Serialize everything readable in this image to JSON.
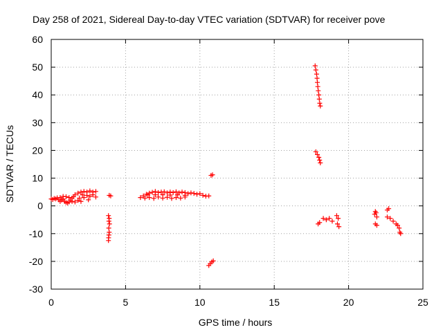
{
  "chart_data": {
    "type": "scatter",
    "title": "Day 258 of 2021, Sidereal Day-to-day VTEC variation (SDTVAR) for receiver pove",
    "xlabel": "GPS time / hours",
    "ylabel": "SDTVAR / TECUs",
    "xlim": [
      0,
      25
    ],
    "ylim": [
      -30,
      60
    ],
    "xticks": [
      0,
      5,
      10,
      15,
      20,
      25
    ],
    "yticks": [
      -30,
      -20,
      -10,
      0,
      10,
      20,
      30,
      40,
      50,
      60
    ],
    "xtick_labels": [
      "0",
      "5",
      "10",
      "15",
      "20",
      "25"
    ],
    "ytick_labels": [
      "-30",
      "-20",
      "-10",
      "0",
      "10",
      "20",
      "30",
      "40",
      "50",
      "60"
    ],
    "grid": true,
    "marker": "plus",
    "color": "#ff0000",
    "series": [
      {
        "name": "SDTVAR",
        "points": [
          [
            0.0,
            2.5
          ],
          [
            0.1,
            2.3
          ],
          [
            0.2,
            2.7
          ],
          [
            0.3,
            2.5
          ],
          [
            0.4,
            2.9
          ],
          [
            0.5,
            2.2
          ],
          [
            0.6,
            3.0
          ],
          [
            0.7,
            2.1
          ],
          [
            0.8,
            2.5
          ],
          [
            0.9,
            1.6
          ],
          [
            1.0,
            1.2
          ],
          [
            1.1,
            1.0
          ],
          [
            1.2,
            1.4
          ],
          [
            1.3,
            2.1
          ],
          [
            1.4,
            2.8
          ],
          [
            1.5,
            3.3
          ],
          [
            0.6,
            1.6
          ],
          [
            0.8,
            3.4
          ],
          [
            1.0,
            3.3
          ],
          [
            1.2,
            3.0
          ],
          [
            1.4,
            1.6
          ],
          [
            1.6,
            1.4
          ],
          [
            1.8,
            2.0
          ],
          [
            2.0,
            1.6
          ],
          [
            1.6,
            4.0
          ],
          [
            1.8,
            4.6
          ],
          [
            2.0,
            5.0
          ],
          [
            2.2,
            5.2
          ],
          [
            2.4,
            5.0
          ],
          [
            2.6,
            5.4
          ],
          [
            2.8,
            5.0
          ],
          [
            3.0,
            5.2
          ],
          [
            2.2,
            3.0
          ],
          [
            2.4,
            3.8
          ],
          [
            2.6,
            3.4
          ],
          [
            2.8,
            4.0
          ],
          [
            3.0,
            3.2
          ],
          [
            1.9,
            2.8
          ],
          [
            2.1,
            4.0
          ],
          [
            2.5,
            2.2
          ],
          [
            3.9,
            3.8
          ],
          [
            4.0,
            3.6
          ],
          [
            3.85,
            -3.5
          ],
          [
            3.9,
            -4.5
          ],
          [
            3.88,
            -5.5
          ],
          [
            3.92,
            -6.5
          ],
          [
            3.87,
            -8.0
          ],
          [
            3.9,
            -9.5
          ],
          [
            3.88,
            -10.5
          ],
          [
            3.86,
            -11.5
          ],
          [
            3.85,
            -12.5
          ],
          [
            6.0,
            3.0
          ],
          [
            6.2,
            3.6
          ],
          [
            6.4,
            4.2
          ],
          [
            6.6,
            4.6
          ],
          [
            6.8,
            4.9
          ],
          [
            7.0,
            5.2
          ],
          [
            7.2,
            4.8
          ],
          [
            7.4,
            5.0
          ],
          [
            6.3,
            2.8
          ],
          [
            6.6,
            3.0
          ],
          [
            6.9,
            2.7
          ],
          [
            7.2,
            3.2
          ],
          [
            7.5,
            2.8
          ],
          [
            7.8,
            3.1
          ],
          [
            8.1,
            2.7
          ],
          [
            8.4,
            3.0
          ],
          [
            7.6,
            5.1
          ],
          [
            7.8,
            4.7
          ],
          [
            8.0,
            5.0
          ],
          [
            8.2,
            4.8
          ],
          [
            8.4,
            5.1
          ],
          [
            8.6,
            4.7
          ],
          [
            8.8,
            5.0
          ],
          [
            9.0,
            4.8
          ],
          [
            8.7,
            2.8
          ],
          [
            9.0,
            3.2
          ],
          [
            9.2,
            4.4
          ],
          [
            9.4,
            4.7
          ],
          [
            9.6,
            4.5
          ],
          [
            9.8,
            4.2
          ],
          [
            10.0,
            4.4
          ],
          [
            10.2,
            3.8
          ],
          [
            10.4,
            3.5
          ],
          [
            10.6,
            3.6
          ],
          [
            6.5,
            4.0
          ],
          [
            7.0,
            4.0
          ],
          [
            7.5,
            4.0
          ],
          [
            8.0,
            3.9
          ],
          [
            8.5,
            4.0
          ],
          [
            9.0,
            3.8
          ],
          [
            10.75,
            11.0
          ],
          [
            10.85,
            11.2
          ],
          [
            10.6,
            -21.5
          ],
          [
            10.7,
            -20.8
          ],
          [
            10.8,
            -20.2
          ],
          [
            10.9,
            -19.8
          ],
          [
            17.75,
            50.5
          ],
          [
            17.8,
            49.0
          ],
          [
            17.85,
            47.5
          ],
          [
            17.88,
            46.0
          ],
          [
            17.9,
            44.5
          ],
          [
            17.93,
            43.0
          ],
          [
            17.96,
            41.5
          ],
          [
            18.0,
            40.0
          ],
          [
            18.03,
            38.5
          ],
          [
            18.06,
            37.0
          ],
          [
            18.1,
            36.0
          ],
          [
            17.8,
            19.5
          ],
          [
            17.9,
            18.5
          ],
          [
            18.0,
            17.5
          ],
          [
            18.05,
            16.5
          ],
          [
            18.1,
            15.5
          ],
          [
            17.95,
            -6.5
          ],
          [
            18.05,
            -6.0
          ],
          [
            18.3,
            -4.5
          ],
          [
            18.5,
            -5.0
          ],
          [
            18.7,
            -4.5
          ],
          [
            18.9,
            -5.5
          ],
          [
            19.2,
            -3.5
          ],
          [
            19.3,
            -4.5
          ],
          [
            19.25,
            -6.5
          ],
          [
            19.35,
            -7.5
          ],
          [
            21.75,
            -3.0
          ],
          [
            21.8,
            -2.0
          ],
          [
            21.85,
            -2.5
          ],
          [
            21.9,
            -4.0
          ],
          [
            21.8,
            -6.5
          ],
          [
            21.9,
            -7.0
          ],
          [
            22.6,
            -1.5
          ],
          [
            22.7,
            -1.0
          ],
          [
            22.6,
            -4.0
          ],
          [
            22.8,
            -4.5
          ],
          [
            23.0,
            -5.5
          ],
          [
            23.2,
            -6.5
          ],
          [
            23.3,
            -7.0
          ],
          [
            23.4,
            -8.0
          ],
          [
            23.45,
            -9.5
          ],
          [
            23.5,
            -10.0
          ]
        ]
      }
    ]
  }
}
